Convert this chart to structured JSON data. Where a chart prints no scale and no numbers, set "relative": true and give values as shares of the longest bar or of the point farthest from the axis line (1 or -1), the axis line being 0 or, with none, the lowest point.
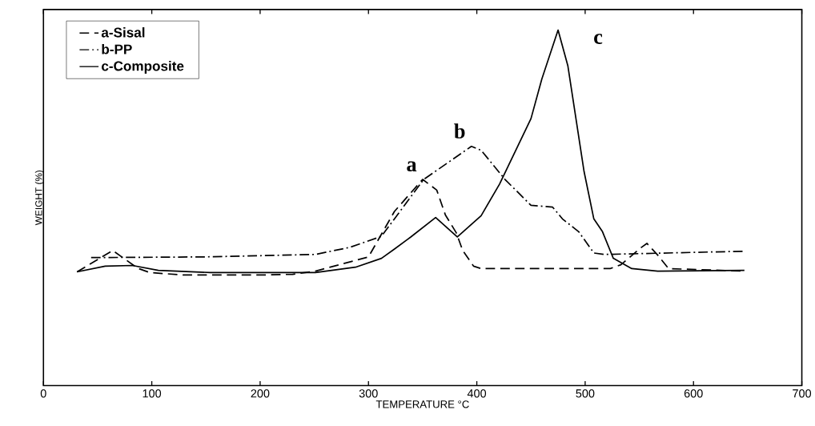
{
  "chart_data": {
    "type": "line",
    "relative": true,
    "xlabel": "TEMPERATURE °C",
    "ylabel": "WEIGHT (%)",
    "xlim": [
      0,
      700
    ],
    "xticks": [
      0,
      100,
      200,
      300,
      400,
      500,
      600,
      700
    ],
    "legend": "top left",
    "series": [
      {
        "name": "a-Sisal",
        "color": "#000000",
        "line_style": "dashed",
        "x": [
          31,
          64,
          87,
          98,
          130,
          200,
          230,
          251,
          300,
          324,
          350,
          363,
          371,
          381,
          387,
          397,
          404,
          450,
          523,
          533,
          552,
          557,
          567,
          577,
          647
        ],
        "values": [
          0.32,
          0.38,
          0.33,
          0.318,
          0.311,
          0.311,
          0.313,
          0.322,
          0.362,
          0.49,
          0.58,
          0.55,
          0.48,
          0.43,
          0.38,
          0.336,
          0.329,
          0.329,
          0.329,
          0.34,
          0.389,
          0.4,
          0.367,
          0.329,
          0.322
        ]
      },
      {
        "name": "b-PP",
        "color": "#000000",
        "line_style": "dashdot",
        "x": [
          44,
          150,
          251,
          283,
          312,
          351,
          395,
          404,
          426,
          450,
          470,
          479,
          494,
          508,
          518,
          647
        ],
        "values": [
          0.36,
          0.362,
          0.369,
          0.389,
          0.42,
          0.58,
          0.673,
          0.662,
          0.58,
          0.507,
          0.502,
          0.469,
          0.433,
          0.373,
          0.369,
          0.378
        ]
      },
      {
        "name": "c-Composite",
        "color": "#000000",
        "line_style": "solid",
        "x": [
          31,
          57,
          82,
          106,
          154,
          251,
          288,
          312,
          324,
          339,
          362,
          382,
          404,
          421,
          450,
          460,
          475,
          484,
          499,
          508,
          516,
          526,
          543,
          567,
          647
        ],
        "values": [
          0.32,
          0.336,
          0.338,
          0.324,
          0.318,
          0.318,
          0.333,
          0.358,
          0.384,
          0.418,
          0.473,
          0.418,
          0.478,
          0.567,
          0.751,
          0.862,
          1,
          0.9,
          0.602,
          0.469,
          0.433,
          0.358,
          0.329,
          0.322,
          0.324
        ]
      }
    ],
    "annotations": [
      "a",
      "b",
      "c"
    ]
  }
}
